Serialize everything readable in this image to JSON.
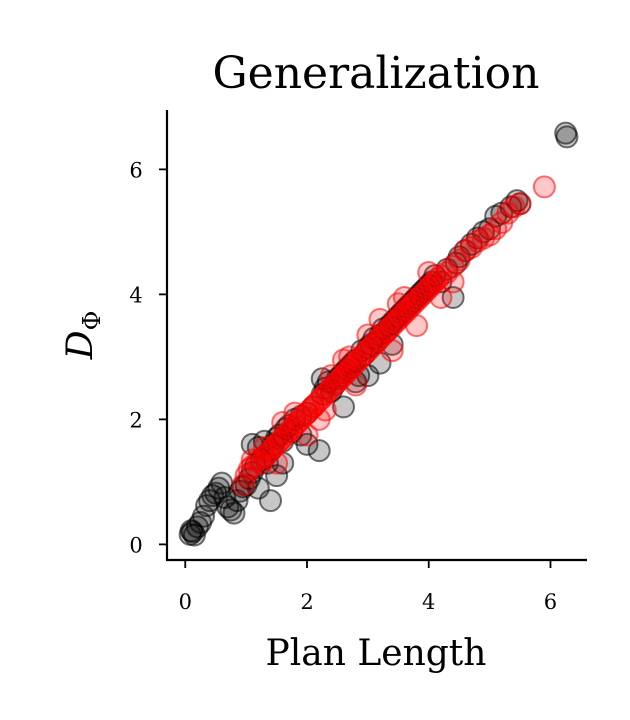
{
  "chart_data": {
    "type": "scatter",
    "title": "Generalization",
    "xlabel": "Plan Length",
    "ylabel": "D",
    "ylabel_subscript": "Φ",
    "xlim": [
      -0.3,
      6.6
    ],
    "ylim": [
      -0.25,
      6.95
    ],
    "xticks": [
      0,
      2,
      4,
      6
    ],
    "yticks": [
      0,
      2,
      4,
      6
    ],
    "grid": false,
    "series": [
      {
        "color": "#000000",
        "points": [
          [
            0.08,
            0.16
          ],
          [
            0.12,
            0.2
          ],
          [
            0.15,
            0.15
          ],
          [
            0.1,
            0.22
          ],
          [
            0.2,
            0.28
          ],
          [
            0.25,
            0.35
          ],
          [
            0.3,
            0.45
          ],
          [
            0.35,
            0.62
          ],
          [
            0.4,
            0.7
          ],
          [
            0.45,
            0.78
          ],
          [
            0.5,
            0.82
          ],
          [
            0.55,
            0.9
          ],
          [
            0.6,
            0.98
          ],
          [
            0.65,
            0.75
          ],
          [
            0.7,
            0.6
          ],
          [
            0.75,
            0.55
          ],
          [
            0.8,
            0.5
          ],
          [
            0.85,
            0.7
          ],
          [
            0.9,
            0.85
          ],
          [
            0.95,
            0.92
          ],
          [
            1.0,
            0.95
          ],
          [
            1.05,
            1.05
          ],
          [
            1.1,
            1.15
          ],
          [
            1.15,
            1.25
          ],
          [
            1.2,
            1.55
          ],
          [
            1.25,
            1.35
          ],
          [
            1.3,
            1.4
          ],
          [
            1.35,
            1.3
          ],
          [
            1.4,
            1.5
          ],
          [
            1.45,
            1.6
          ],
          [
            1.5,
            1.7
          ],
          [
            1.55,
            1.75
          ],
          [
            1.6,
            1.65
          ],
          [
            1.65,
            1.85
          ],
          [
            1.7,
            1.9
          ],
          [
            1.75,
            1.8
          ],
          [
            1.1,
            1.6
          ],
          [
            1.3,
            1.65
          ],
          [
            1.4,
            0.7
          ],
          [
            1.2,
            0.9
          ],
          [
            1.5,
            1.1
          ],
          [
            1.6,
            1.3
          ],
          [
            1.8,
            2.0
          ],
          [
            1.9,
            2.05
          ],
          [
            2.0,
            2.1
          ],
          [
            2.1,
            2.2
          ],
          [
            2.2,
            1.5
          ],
          [
            2.25,
            2.4
          ],
          [
            2.3,
            2.5
          ],
          [
            2.35,
            2.6
          ],
          [
            2.4,
            2.45
          ],
          [
            2.45,
            2.55
          ],
          [
            2.5,
            2.65
          ],
          [
            2.55,
            2.7
          ],
          [
            2.6,
            2.75
          ],
          [
            2.65,
            2.8
          ],
          [
            2.7,
            2.85
          ],
          [
            2.75,
            2.9
          ],
          [
            2.8,
            2.95
          ],
          [
            2.85,
            2.7
          ],
          [
            2.9,
            3.1
          ],
          [
            2.95,
            3.05
          ],
          [
            3.0,
            3.15
          ],
          [
            3.05,
            3.2
          ],
          [
            3.1,
            3.3
          ],
          [
            3.15,
            3.25
          ],
          [
            3.2,
            3.35
          ],
          [
            3.25,
            3.45
          ],
          [
            3.3,
            3.4
          ],
          [
            3.35,
            3.5
          ],
          [
            3.4,
            3.55
          ],
          [
            3.45,
            3.6
          ],
          [
            3.5,
            3.65
          ],
          [
            3.55,
            3.7
          ],
          [
            3.6,
            3.75
          ],
          [
            3.65,
            3.8
          ],
          [
            3.7,
            3.85
          ],
          [
            3.75,
            3.9
          ],
          [
            3.8,
            3.95
          ],
          [
            3.85,
            4.0
          ],
          [
            3.9,
            4.05
          ],
          [
            3.95,
            4.1
          ],
          [
            4.0,
            4.15
          ],
          [
            4.05,
            4.2
          ],
          [
            4.1,
            4.3
          ],
          [
            4.2,
            4.2
          ],
          [
            4.3,
            4.4
          ],
          [
            4.4,
            3.95
          ],
          [
            4.45,
            4.5
          ],
          [
            4.5,
            4.6
          ],
          [
            4.6,
            4.7
          ],
          [
            4.7,
            4.8
          ],
          [
            4.8,
            4.9
          ],
          [
            4.9,
            5.0
          ],
          [
            5.0,
            5.05
          ],
          [
            5.1,
            5.25
          ],
          [
            5.2,
            5.3
          ],
          [
            5.35,
            5.4
          ],
          [
            5.45,
            5.5
          ],
          [
            5.5,
            5.45
          ],
          [
            6.25,
            6.58
          ],
          [
            6.27,
            6.52
          ],
          [
            2.25,
            2.65
          ],
          [
            2.0,
            1.6
          ],
          [
            1.9,
            1.75
          ],
          [
            2.6,
            2.2
          ],
          [
            3.2,
            2.9
          ],
          [
            3.0,
            2.7
          ],
          [
            2.8,
            2.6
          ],
          [
            3.4,
            3.2
          ]
        ]
      },
      {
        "color": "#ff0000",
        "points": [
          [
            0.95,
            0.95
          ],
          [
            1.0,
            1.1
          ],
          [
            1.05,
            1.2
          ],
          [
            1.1,
            1.25
          ],
          [
            1.2,
            1.35
          ],
          [
            1.25,
            1.3
          ],
          [
            1.3,
            1.4
          ],
          [
            1.35,
            1.45
          ],
          [
            1.4,
            1.5
          ],
          [
            1.45,
            1.55
          ],
          [
            1.5,
            1.6
          ],
          [
            1.55,
            1.65
          ],
          [
            1.6,
            1.7
          ],
          [
            1.65,
            1.75
          ],
          [
            1.7,
            1.8
          ],
          [
            1.75,
            1.85
          ],
          [
            1.8,
            1.9
          ],
          [
            1.85,
            1.95
          ],
          [
            1.9,
            2.0
          ],
          [
            1.95,
            2.05
          ],
          [
            2.0,
            2.1
          ],
          [
            2.05,
            2.15
          ],
          [
            2.1,
            2.2
          ],
          [
            2.15,
            2.25
          ],
          [
            2.2,
            2.3
          ],
          [
            2.25,
            2.35
          ],
          [
            2.3,
            2.4
          ],
          [
            2.35,
            2.45
          ],
          [
            2.4,
            2.5
          ],
          [
            2.45,
            2.55
          ],
          [
            2.5,
            2.6
          ],
          [
            2.55,
            2.65
          ],
          [
            2.6,
            2.7
          ],
          [
            2.65,
            2.75
          ],
          [
            2.7,
            2.8
          ],
          [
            2.75,
            2.85
          ],
          [
            2.8,
            2.9
          ],
          [
            2.85,
            2.95
          ],
          [
            2.9,
            3.0
          ],
          [
            2.95,
            3.05
          ],
          [
            3.0,
            3.1
          ],
          [
            3.05,
            3.15
          ],
          [
            3.1,
            3.2
          ],
          [
            3.15,
            3.25
          ],
          [
            3.2,
            3.3
          ],
          [
            3.25,
            3.35
          ],
          [
            3.3,
            3.4
          ],
          [
            3.35,
            3.45
          ],
          [
            3.4,
            3.5
          ],
          [
            3.45,
            3.55
          ],
          [
            3.5,
            3.6
          ],
          [
            3.55,
            3.65
          ],
          [
            3.6,
            3.7
          ],
          [
            3.65,
            3.75
          ],
          [
            3.7,
            3.8
          ],
          [
            3.75,
            3.85
          ],
          [
            3.8,
            3.9
          ],
          [
            3.85,
            3.95
          ],
          [
            3.9,
            4.0
          ],
          [
            3.95,
            4.05
          ],
          [
            4.0,
            4.1
          ],
          [
            4.05,
            4.15
          ],
          [
            4.1,
            4.2
          ],
          [
            4.15,
            4.25
          ],
          [
            4.2,
            4.3
          ],
          [
            4.3,
            4.35
          ],
          [
            4.4,
            4.45
          ],
          [
            4.5,
            4.55
          ],
          [
            4.6,
            4.7
          ],
          [
            4.7,
            4.75
          ],
          [
            4.8,
            4.85
          ],
          [
            4.9,
            4.9
          ],
          [
            5.0,
            4.95
          ],
          [
            5.1,
            5.05
          ],
          [
            5.2,
            5.15
          ],
          [
            5.3,
            5.3
          ],
          [
            5.4,
            5.4
          ],
          [
            5.5,
            5.45
          ],
          [
            5.9,
            5.72
          ],
          [
            2.0,
            1.75
          ],
          [
            1.8,
            2.1
          ],
          [
            2.2,
            2.0
          ],
          [
            2.4,
            2.7
          ],
          [
            2.6,
            2.95
          ],
          [
            2.8,
            2.55
          ],
          [
            3.0,
            3.35
          ],
          [
            3.2,
            3.6
          ],
          [
            3.4,
            3.1
          ],
          [
            3.6,
            3.95
          ],
          [
            3.8,
            3.5
          ],
          [
            4.0,
            4.35
          ],
          [
            4.2,
            3.95
          ],
          [
            1.5,
            1.3
          ],
          [
            1.6,
            1.95
          ],
          [
            1.3,
            1.55
          ],
          [
            1.1,
            1.35
          ],
          [
            2.3,
            2.15
          ],
          [
            2.7,
            3.0
          ],
          [
            3.5,
            3.85
          ],
          [
            4.4,
            4.2
          ]
        ]
      }
    ]
  }
}
